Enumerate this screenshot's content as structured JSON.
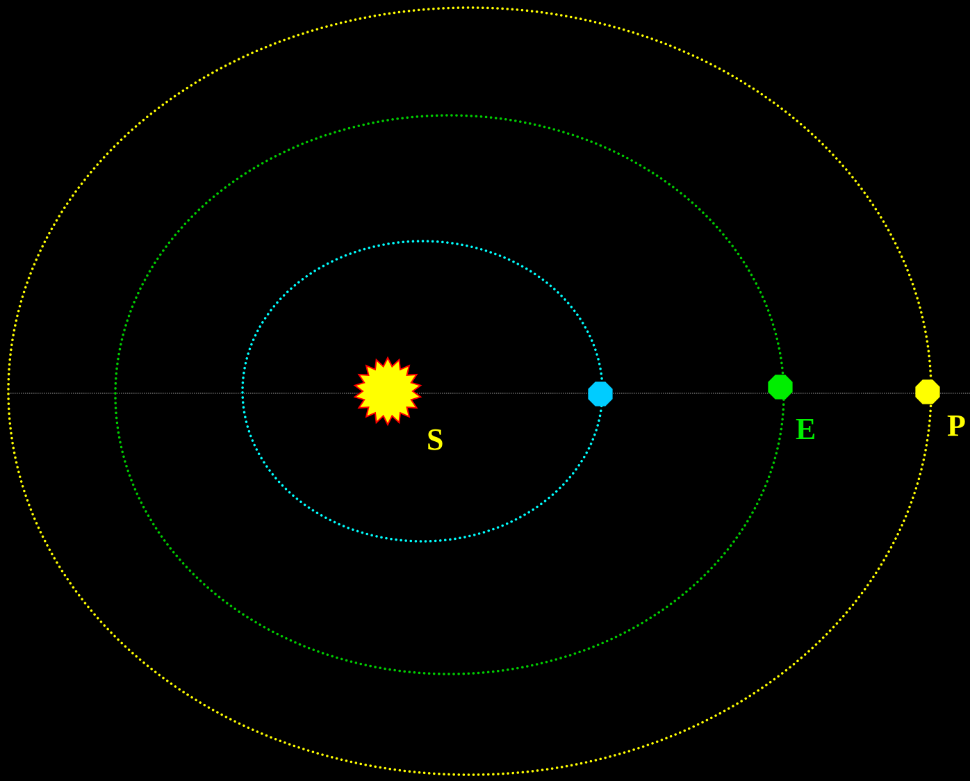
{
  "colors": {
    "background": "#000000",
    "baseline": "#a0a0a0",
    "outer_orbit": "#ffff00",
    "middle_orbit": "#00cc00",
    "inner_orbit": "#00ffff",
    "sun_fill": "#ffff00",
    "sun_stroke": "#ff0000",
    "inner_planet": "#00ccff",
    "earth": "#00ee00",
    "planet_p": "#ffff00",
    "label_s": "#ffff00",
    "label_e": "#00ee00",
    "label_p": "#ffff00"
  },
  "labels": {
    "sun": "S",
    "earth": "E",
    "outer_planet": "P"
  },
  "icons": {
    "sun": "sun-icon",
    "inner_planet": "octagon-icon",
    "earth": "octagon-icon",
    "outer_planet": "octagon-icon"
  }
}
